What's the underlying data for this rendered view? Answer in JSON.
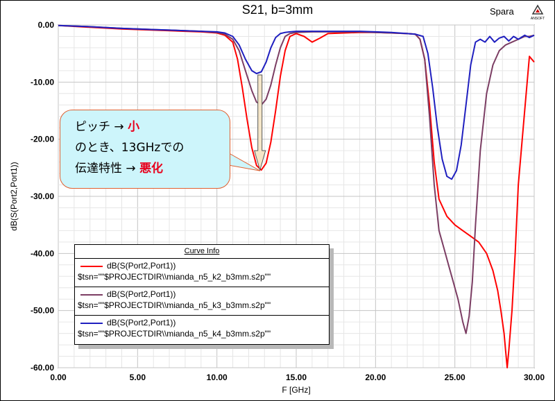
{
  "chart_data": {
    "type": "line",
    "title": "S21, b=3mm",
    "xlabel": "F [GHz]",
    "ylabel": "dB(S(Port2,Port1))",
    "xlim": [
      0,
      30
    ],
    "ylim": [
      -60,
      0
    ],
    "x_ticks": [
      "0.00",
      "5.00",
      "10.00",
      "15.00",
      "20.00",
      "25.00",
      "30.00"
    ],
    "y_ticks": [
      "0.00",
      "-10.00",
      "-20.00",
      "-30.00",
      "-40.00",
      "-50.00",
      "-60.00"
    ],
    "grid": true,
    "legend_position": "bottom-left",
    "series": [
      {
        "name": "dB(S(Port2,Port1)) $tsn=\"\"$PROJECTDIR\\\\mianda_n5_k2_b3mm.s2p\"\"",
        "color": "#ff0000",
        "x": [
          0,
          2,
          4,
          6,
          8,
          9,
          10,
          10.5,
          11,
          11.3,
          11.6,
          11.9,
          12.2,
          12.5,
          12.8,
          13.1,
          13.4,
          13.7,
          14.0,
          14.3,
          14.6,
          15.0,
          15.5,
          16.0,
          16.5,
          17,
          18,
          19,
          20,
          21,
          22,
          22.5,
          22.8,
          23.1,
          23.4,
          23.7,
          24.0,
          24.5,
          25,
          25.5,
          26,
          26.5,
          27,
          27.4,
          27.7,
          27.9,
          28.1,
          28.2,
          28.3,
          28.4,
          28.6,
          28.8,
          29.0,
          29.4,
          29.7,
          30
        ],
        "values": [
          -0.1,
          -0.4,
          -0.7,
          -0.9,
          -1.1,
          -1.2,
          -1.4,
          -1.8,
          -3.0,
          -6.0,
          -11.0,
          -16.5,
          -21.5,
          -24.6,
          -25.4,
          -24.2,
          -20.5,
          -15.0,
          -9.0,
          -4.5,
          -2.0,
          -1.5,
          -2.0,
          -3.0,
          -2.3,
          -1.5,
          -1.4,
          -1.3,
          -1.3,
          -1.4,
          -1.5,
          -1.6,
          -2.5,
          -6.0,
          -14.0,
          -24.0,
          -30.5,
          -33.5,
          -35.0,
          -36.0,
          -37.0,
          -38.0,
          -40.0,
          -43.0,
          -46.5,
          -50.0,
          -54.0,
          -57.0,
          -60.0,
          -57.0,
          -50.0,
          -40.0,
          -28.0,
          -15.0,
          -5.5,
          -6.5
        ]
      },
      {
        "name": "dB(S(Port2,Port1)) $tsn=\"\"$PROJECTDIR\\\\mianda_n5_k3_b3mm.s2p\"\"",
        "color": "#7b3d63",
        "x": [
          0,
          2,
          4,
          6,
          8,
          9,
          10,
          10.5,
          11,
          11.4,
          11.8,
          12.2,
          12.5,
          12.8,
          13.1,
          13.4,
          13.7,
          14.0,
          14.3,
          14.6,
          15.0,
          16,
          17,
          18,
          19,
          20,
          21,
          22,
          22.5,
          22.8,
          23.1,
          23.4,
          23.7,
          24.0,
          24.3,
          24.6,
          24.9,
          25.2,
          25.5,
          25.7,
          25.9,
          26.1,
          26.3,
          26.6,
          27.0,
          27.4,
          27.8,
          28.2,
          28.6,
          29.0,
          29.4,
          29.7,
          30
        ],
        "values": [
          -0.1,
          -0.3,
          -0.6,
          -0.8,
          -1.0,
          -1.1,
          -1.3,
          -1.6,
          -2.5,
          -4.5,
          -8.0,
          -11.5,
          -13.5,
          -14.0,
          -13.0,
          -10.5,
          -7.0,
          -4.0,
          -2.0,
          -1.5,
          -1.3,
          -1.2,
          -1.2,
          -1.2,
          -1.2,
          -1.3,
          -1.4,
          -1.5,
          -1.6,
          -2.5,
          -6.0,
          -16.0,
          -28.0,
          -36.0,
          -39.0,
          -42.0,
          -45.0,
          -48.0,
          -52.0,
          -54.0,
          -51.0,
          -45.0,
          -35.0,
          -22.0,
          -12.0,
          -7.0,
          -4.5,
          -3.5,
          -3.0,
          -2.5,
          -2.0,
          -2.0,
          -1.8
        ]
      },
      {
        "name": "dB(S(Port2,Port1)) $tsn=\"\"$PROJECTDIR\\\\mianda_n5_k4_b3mm.s2p\"\"",
        "color": "#1f1fbf",
        "x": [
          0,
          2,
          4,
          6,
          8,
          9,
          10,
          10.5,
          11,
          11.4,
          11.8,
          12.2,
          12.5,
          12.8,
          13.1,
          13.4,
          13.7,
          14.0,
          14.3,
          14.6,
          15.0,
          16,
          17,
          18,
          19,
          20,
          21,
          22,
          22.5,
          23.0,
          23.3,
          23.6,
          23.9,
          24.2,
          24.5,
          24.8,
          25.1,
          25.4,
          25.7,
          26.0,
          26.3,
          26.6,
          26.9,
          27.2,
          27.5,
          27.8,
          28.1,
          28.4,
          28.7,
          29.0,
          29.4,
          29.7,
          30
        ],
        "values": [
          -0.1,
          -0.3,
          -0.6,
          -0.8,
          -1.0,
          -1.1,
          -1.2,
          -1.4,
          -2.0,
          -3.5,
          -6.0,
          -8.0,
          -8.5,
          -8.2,
          -6.5,
          -4.0,
          -2.2,
          -1.5,
          -1.3,
          -1.2,
          -1.1,
          -1.1,
          -1.1,
          -1.1,
          -1.1,
          -1.2,
          -1.3,
          -1.5,
          -1.6,
          -2.0,
          -5.0,
          -11.0,
          -18.0,
          -23.5,
          -26.5,
          -27.0,
          -25.5,
          -21.0,
          -14.0,
          -7.0,
          -3.0,
          -2.5,
          -3.0,
          -2.0,
          -3.0,
          -2.3,
          -2.0,
          -2.8,
          -2.0,
          -2.5,
          -1.8,
          -2.2,
          -1.8
        ]
      }
    ]
  },
  "chart_title": "S21, b=3mm",
  "brand_label": "Spara",
  "logo_text": "ANSOFT",
  "legend": {
    "title": "Curve Info",
    "rows": [
      {
        "line1": "dB(S(Port2,Port1))",
        "line2": "$tsn=\"\"$PROJECTDIR\\\\mianda_n5_k2_b3mm.s2p\"\"",
        "color": "#ff0000"
      },
      {
        "line1": "dB(S(Port2,Port1))",
        "line2": "$tsn=\"\"$PROJECTDIR\\\\mianda_n5_k3_b3mm.s2p\"\"",
        "color": "#7b3d63"
      },
      {
        "line1": "dB(S(Port2,Port1))",
        "line2": "$tsn=\"\"$PROJECTDIR\\\\mianda_n5_k4_b3mm.s2p\"\"",
        "color": "#1f1fbf"
      }
    ]
  },
  "callout": {
    "line1_prefix": "ピッチ → ",
    "line1_emph": "小",
    "line2": "のとき、13GHzでの",
    "line3_prefix": "伝達特性 → ",
    "line3_emph": "悪化",
    "arrow_from_y": -8.5,
    "arrow_to_y": -25.4,
    "arrow_x": 12.8
  }
}
